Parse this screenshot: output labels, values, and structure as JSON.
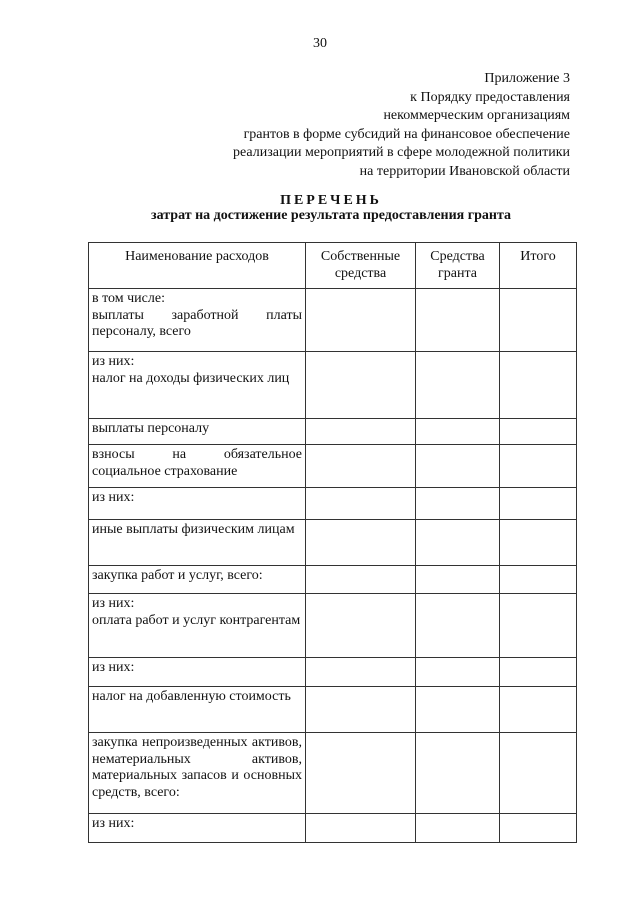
{
  "page_number": "30",
  "appendix": {
    "lines": [
      "Приложение 3",
      "к Порядку предоставления",
      "некоммерческим организациям",
      "грантов в форме субсидий на финансовое обеспечение",
      "реализации мероприятий в сфере молодежной политики",
      "на территории Ивановской области"
    ]
  },
  "title": "ПЕРЕЧЕНЬ",
  "subtitle": "затрат на достижение результата предоставления гранта",
  "table": {
    "headers": [
      "Наименование расходов",
      "Собственные средства",
      "Средства гранта",
      "Итого"
    ],
    "rows": [
      {
        "name": "в том числе:\nвыплаты заработной платы персоналу, всего"
      },
      {
        "name": "из них:\nналог на доходы физических лиц"
      },
      {
        "name": "выплаты персоналу"
      },
      {
        "name": "взносы на обязательное социальное страхование"
      },
      {
        "name": "из них:"
      },
      {
        "name": "иные выплаты физическим лицам"
      },
      {
        "name": "закупка работ и услуг, всего:"
      },
      {
        "name": "из них:\nоплата работ и услуг контрагентам"
      },
      {
        "name": "из них:"
      },
      {
        "name": "налог на добавленную стоимость"
      },
      {
        "name": "закупка непроизведенных активов, нематериальных активов, материальных запасов и основных средств, всего:"
      },
      {
        "name": "из них:"
      }
    ]
  }
}
